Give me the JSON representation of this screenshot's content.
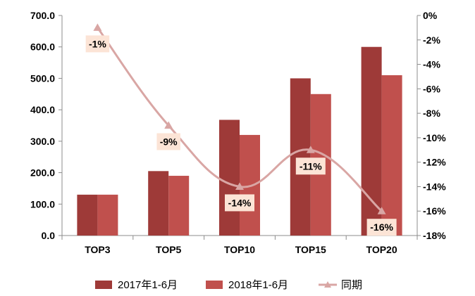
{
  "chart_data": {
    "type": "bar",
    "categories": [
      "TOP3",
      "TOP5",
      "TOP10",
      "TOP15",
      "TOP20"
    ],
    "series": [
      {
        "name": "2017年1-6月",
        "type": "bar",
        "axis": "left",
        "color": "#9e3a38",
        "values": [
          130,
          205,
          368,
          500,
          600
        ]
      },
      {
        "name": "2018年1-6月",
        "type": "bar",
        "axis": "left",
        "color": "#c0504d",
        "values": [
          130,
          190,
          320,
          450,
          510
        ]
      },
      {
        "name": "同期",
        "type": "line",
        "axis": "right",
        "color": "#d9a6a4",
        "marker": "triangle",
        "values": [
          -1,
          -9,
          -14,
          -11,
          -16
        ],
        "labels": [
          "-1%",
          "-9%",
          "-14%",
          "-11%",
          "-16%"
        ]
      }
    ],
    "y_left": {
      "min": 0,
      "max": 700,
      "ticks": [
        0,
        100,
        200,
        300,
        400,
        500,
        600,
        700
      ],
      "tick_labels": [
        "0.0",
        "100.0",
        "200.0",
        "300.0",
        "400.0",
        "500.0",
        "600.0",
        "700.0"
      ]
    },
    "y_right": {
      "min": -18,
      "max": 0,
      "ticks": [
        0,
        -2,
        -4,
        -6,
        -8,
        -10,
        -12,
        -14,
        -16,
        -18
      ],
      "tick_labels": [
        "0%",
        "-2%",
        "-4%",
        "-6%",
        "-8%",
        "-10%",
        "-12%",
        "-14%",
        "-16%",
        "-18%"
      ]
    },
    "legend_position": "bottom",
    "data_label_bg": "#fce4d6",
    "grid": false
  }
}
